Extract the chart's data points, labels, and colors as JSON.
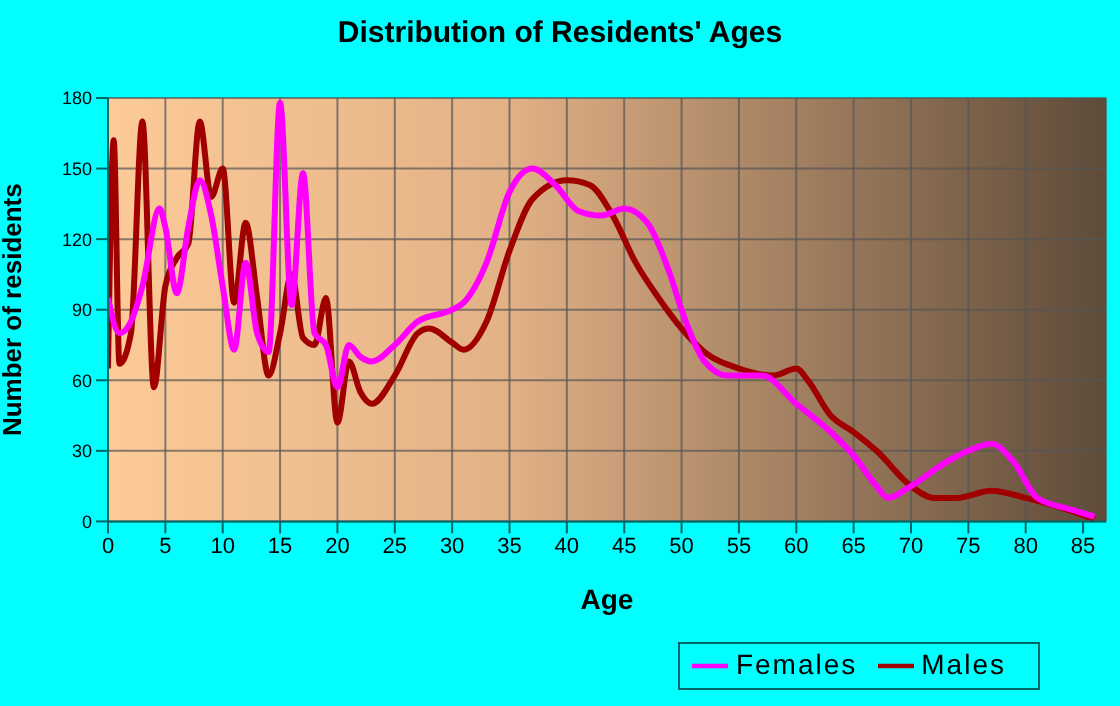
{
  "chart_data": {
    "type": "line",
    "title": "Distribution of Residents' Ages",
    "xlabel": "Age",
    "ylabel": "Number of residents",
    "xlim": [
      0,
      87
    ],
    "xticks": [
      0,
      5,
      10,
      15,
      20,
      25,
      30,
      35,
      40,
      45,
      50,
      55,
      60,
      65,
      70,
      75,
      80,
      85
    ],
    "ylim": [
      0,
      180
    ],
    "yticks": [
      0,
      30,
      60,
      90,
      120,
      150,
      180
    ],
    "grid": true,
    "legend": "bottom right",
    "marker": "none",
    "line_style": "solid",
    "series": [
      {
        "name": "Males",
        "color": "#a00000",
        "x": [
          0,
          0.5,
          1,
          2,
          3,
          4,
          5,
          6,
          7,
          8,
          9,
          10,
          11,
          12,
          13,
          14,
          15,
          16,
          17,
          18,
          19,
          20,
          21,
          22,
          23,
          25,
          27,
          28,
          30,
          31,
          33,
          35,
          37,
          40,
          42,
          44,
          46,
          48,
          50,
          52,
          55,
          58,
          60,
          61,
          63,
          65,
          67,
          70,
          72,
          74,
          77,
          80,
          83,
          86
        ],
        "values": [
          65,
          162,
          67,
          80,
          170,
          57,
          100,
          112,
          118,
          170,
          138,
          150,
          93,
          127,
          95,
          62,
          80,
          105,
          78,
          75,
          95,
          42,
          68,
          55,
          50,
          62,
          80,
          82,
          76,
          73,
          85,
          115,
          137,
          145,
          143,
          130,
          110,
          95,
          82,
          72,
          65,
          62,
          65,
          60,
          45,
          38,
          30,
          15,
          10,
          10,
          13,
          10,
          6,
          1
        ]
      },
      {
        "name": "Females",
        "color": "#ff00ff",
        "x": [
          0,
          1,
          2,
          3,
          4.5,
          5,
          6,
          7,
          8,
          9,
          10,
          11,
          12,
          13,
          14,
          15,
          16,
          17,
          18,
          19,
          20,
          21,
          22,
          23,
          25,
          27,
          30,
          31,
          33,
          35,
          37,
          39,
          41,
          43,
          45,
          47,
          49,
          50,
          52,
          54,
          57,
          60,
          63,
          65,
          67,
          68,
          70,
          73,
          75,
          77,
          79,
          81,
          84,
          86
        ],
        "values": [
          95,
          80,
          85,
          100,
          133,
          125,
          97,
          125,
          145,
          130,
          100,
          73,
          110,
          80,
          72,
          178,
          92,
          148,
          80,
          75,
          57,
          75,
          70,
          68,
          75,
          85,
          90,
          93,
          110,
          140,
          150,
          143,
          132,
          130,
          133,
          127,
          105,
          90,
          68,
          62,
          62,
          50,
          38,
          28,
          15,
          10,
          15,
          25,
          30,
          33,
          25,
          10,
          5,
          2
        ]
      }
    ]
  }
}
